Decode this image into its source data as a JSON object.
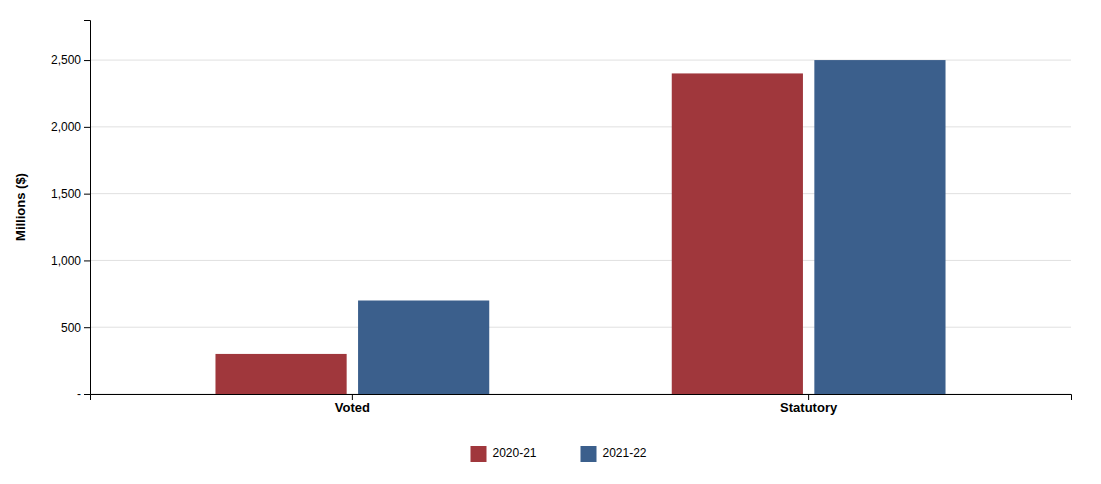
{
  "chart_data": {
    "type": "bar",
    "categories": [
      "Voted",
      "Statutory"
    ],
    "series": [
      {
        "name": "2020-21",
        "color": "#A0373C",
        "values": [
          300,
          2400
        ]
      },
      {
        "name": "2021-22",
        "color": "#3B5F8C",
        "values": [
          700,
          2500
        ]
      }
    ],
    "ylabel": "Millions ($)",
    "ylim": [
      0,
      2800
    ],
    "yticks": [
      {
        "value": 0,
        "label": "-"
      },
      500,
      {
        "value": 1000,
        "label": "1,000"
      },
      {
        "value": 1500,
        "label": "1,500"
      },
      {
        "value": 2000,
        "label": "2,000"
      },
      {
        "value": 2500,
        "label": "2,500"
      }
    ],
    "grid": true,
    "legend": "bottom"
  }
}
